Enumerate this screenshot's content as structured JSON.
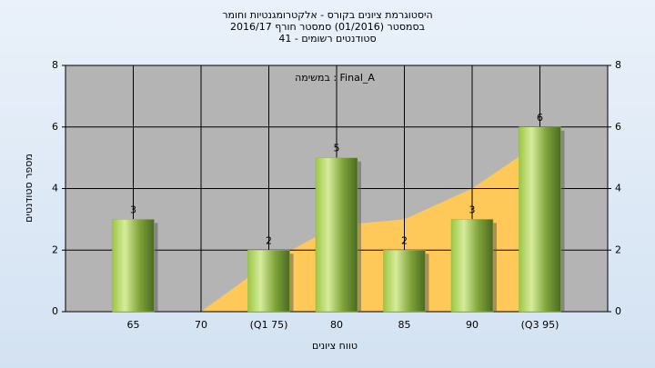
{
  "chart_data": {
    "type": "bar",
    "title": "היסטוגרמת ציונים בקורס - אלקטרומגנטיות וחומר",
    "subtitle": "בסמסטר  (01/2016)  סמסטר חורף 2016/17",
    "subtitle2": "סטודנטים רשומים - 41",
    "annotation": "במשימה : Final_A",
    "xlabel": "טווח ציונים",
    "ylabel": "מספר סטודנטים",
    "categories": [
      "65",
      "70",
      "(Q1 75)",
      "80",
      "85",
      "90",
      "(Q3 95)"
    ],
    "values": [
      3,
      0,
      2,
      5,
      2,
      3,
      6
    ],
    "value_labels": [
      "3",
      null,
      "2",
      "5",
      "2",
      "3",
      "6"
    ],
    "color": "#8cbf3a",
    "area": {
      "values": [
        null,
        0,
        1.6,
        2.8,
        3,
        4,
        5.5
      ],
      "color": "#ffc95a"
    },
    "ylim": [
      0,
      8
    ],
    "yticks": [
      0,
      2,
      4,
      6,
      8
    ],
    "y2lim": [
      0,
      8
    ],
    "y2ticks": [
      0,
      2,
      4,
      6,
      8
    ],
    "grid": true
  }
}
